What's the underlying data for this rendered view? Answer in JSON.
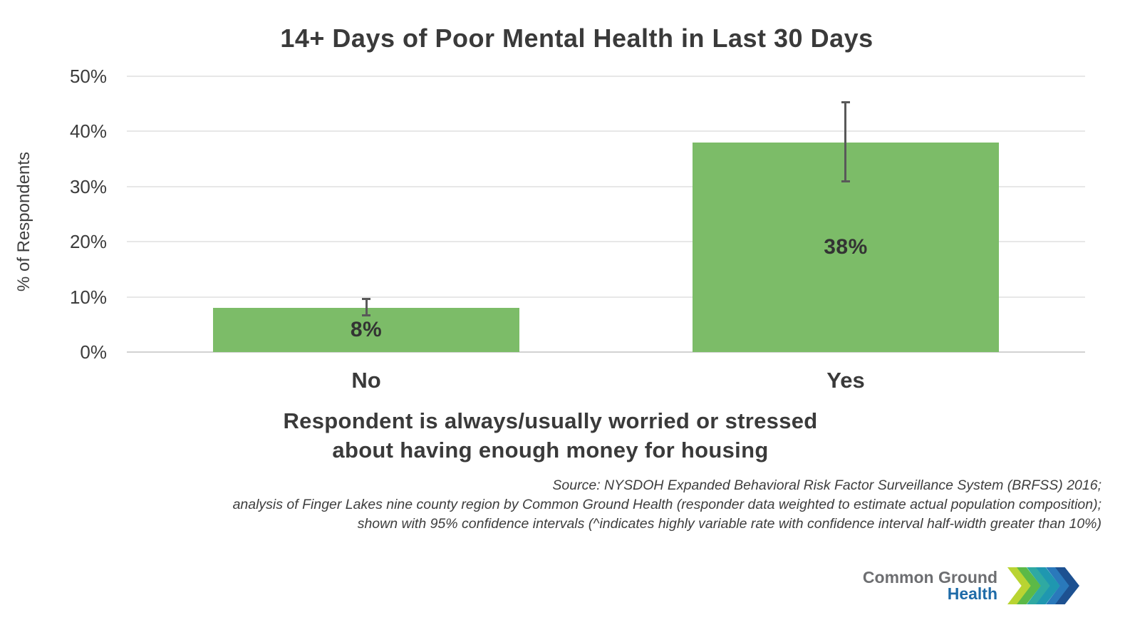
{
  "chart_data": {
    "type": "bar",
    "title": "14+ Days of Poor Mental Health in Last 30 Days",
    "ylabel": "% of Respondents",
    "xlabel_lines": [
      "Respondent is always/usually worried or stressed",
      "about having enough money for housing"
    ],
    "categories": [
      "No",
      "Yes"
    ],
    "values": [
      8,
      38
    ],
    "value_labels": [
      "8%",
      "38%"
    ],
    "error_bars": [
      {
        "low": 6.6,
        "high": 9.7
      },
      {
        "low": 30.9,
        "high": 45.3
      }
    ],
    "ylim": [
      0,
      50
    ],
    "yticks": [
      0,
      10,
      20,
      30,
      40,
      50
    ],
    "ytick_labels": [
      "0%",
      "10%",
      "20%",
      "30%",
      "40%",
      "50%"
    ],
    "grid": true,
    "legend_position": "none",
    "colors": {
      "bar": "#7cbc68",
      "error_bar": "#595959",
      "gridline": "#e7e7e7",
      "axis_line": "#d2d2d2",
      "text": "#3a3a3a"
    }
  },
  "source_note": {
    "lines": [
      "Source: NYSDOH Expanded Behavioral Risk Factor Surveillance System (BRFSS) 2016;",
      "analysis of Finger Lakes nine county region by Common Ground Health (responder data weighted to estimate actual population composition);",
      "shown with 95% confidence intervals (^indicates highly variable rate with confidence interval half-width greater than 10%)"
    ]
  },
  "logo": {
    "line1": "Common Ground",
    "line2": "Health",
    "line1_color": "#6d6e71",
    "line2_color": "#1e6ba8",
    "chevron_colors": [
      "#b9d432",
      "#5cb947",
      "#2fa9a2",
      "#1f97b0",
      "#2a79bb",
      "#1d5191"
    ]
  }
}
